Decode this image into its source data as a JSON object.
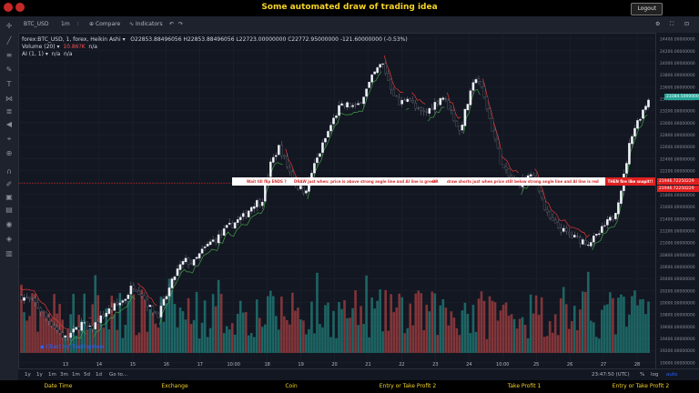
{
  "header": {
    "title": "Some automated draw of trading idea",
    "logout_label": "Logout"
  },
  "toolbar": {
    "symbol": "BTC_USD",
    "interval": "1m",
    "compare": "Compare",
    "indicators": "Indicators"
  },
  "legend": {
    "symbol_line": "forex:BTC_USD, 1, forex, Heikin Ashi",
    "ohlc": "O22853.88496056  H22853.88496056  L22723.00000000  C22772.95000000  -121.60000000 (-0.53%)",
    "volume_label": "Volume (20)",
    "volume_value": "10.86?K",
    "volume_na": "n/a",
    "ai_label": "AI (1, 1)",
    "ai_na1": "n/a",
    "ai_na2": "n/a"
  },
  "annotation": {
    "segment_1": "Wait till flip ENDS ?",
    "segment_2": "DRAW just when: price is above strong angle line and AI line is green",
    "segment_3": "OR",
    "segment_4": "draw shorts just when price still below strong angle line and AI line is red",
    "segment_5": "THEN fire like snapit!!"
  },
  "price_labels": {
    "red_top": "21946.72250229",
    "red_bottom": "21946.72250229",
    "green": "23384.50000000"
  },
  "watermark": "Chart by TradingView",
  "bottombar": {
    "ranges": [
      "1y",
      "1y",
      "1m",
      "3m",
      "1m",
      "5d",
      "1d",
      "Go to..."
    ],
    "time": "23:47:50 (UTC)",
    "pct": "%",
    "log": "log",
    "auto": "auto"
  },
  "footer": {
    "columns": [
      "Date Time",
      "Exchange",
      "Coin",
      "Entry or Take Profit 2",
      "Take Profit 1",
      "Entry or Take Profit 2"
    ]
  },
  "chart_data": {
    "type": "candlestick",
    "x_ticks": [
      "13",
      "14",
      "15",
      "16",
      "17",
      "10:00",
      "18",
      "19",
      "20",
      "21",
      "22",
      "23",
      "24",
      "10:00",
      "25",
      "26",
      "27",
      "28"
    ],
    "y_ticks": [
      24400,
      24200,
      24000,
      23800,
      23600,
      23400,
      23200,
      23000,
      22800,
      22600,
      22400,
      22200,
      22000,
      21800,
      21600,
      21400,
      21200,
      21000,
      20800,
      20600,
      20400,
      20200,
      20000,
      19800,
      19600,
      19400,
      19200,
      19000
    ],
    "y_range": [
      18900,
      24500
    ],
    "price_path": [
      [
        0,
        20100
      ],
      [
        1.5,
        20000
      ],
      [
        3.5,
        19650
      ],
      [
        5,
        19400
      ],
      [
        6,
        19500
      ],
      [
        7,
        19650
      ],
      [
        8,
        19550
      ],
      [
        10,
        19850
      ],
      [
        12,
        20050
      ],
      [
        13,
        20300
      ],
      [
        14,
        20150
      ],
      [
        15,
        19900
      ],
      [
        16,
        19800
      ],
      [
        18,
        20500
      ],
      [
        19,
        20700
      ],
      [
        20,
        20650
      ],
      [
        21,
        20850
      ],
      [
        22,
        21000
      ],
      [
        23,
        21100
      ],
      [
        24,
        21250
      ],
      [
        26,
        21450
      ],
      [
        27,
        21650
      ],
      [
        28,
        21700
      ],
      [
        29,
        22300
      ],
      [
        30,
        22600
      ],
      [
        31,
        22250
      ],
      [
        32,
        21950
      ],
      [
        33,
        21850
      ],
      [
        34,
        22250
      ],
      [
        35,
        22600
      ],
      [
        36,
        22950
      ],
      [
        37,
        23250
      ],
      [
        38,
        23300
      ],
      [
        39,
        23250
      ],
      [
        40,
        23500
      ],
      [
        41,
        23800
      ],
      [
        42,
        24000
      ],
      [
        43,
        23600
      ],
      [
        44,
        23300
      ],
      [
        45,
        23450
      ],
      [
        46,
        23200
      ],
      [
        47,
        23150
      ],
      [
        48,
        23300
      ],
      [
        49,
        23450
      ],
      [
        50,
        23200
      ],
      [
        51,
        22850
      ],
      [
        52,
        23350
      ],
      [
        53,
        23800
      ],
      [
        54,
        23350
      ],
      [
        55,
        22800
      ],
      [
        56,
        22250
      ],
      [
        57,
        22050
      ],
      [
        58,
        22000
      ],
      [
        59,
        22100
      ],
      [
        60,
        22050
      ],
      [
        61,
        21500
      ],
      [
        62,
        21300
      ],
      [
        63,
        21200
      ],
      [
        64,
        21100
      ],
      [
        65,
        21050
      ],
      [
        66,
        21000
      ],
      [
        67,
        21100
      ],
      [
        68,
        21300
      ],
      [
        69,
        21450
      ],
      [
        70,
        22000
      ],
      [
        71,
        22800
      ],
      [
        72,
        23100
      ],
      [
        73,
        23400
      ]
    ]
  }
}
